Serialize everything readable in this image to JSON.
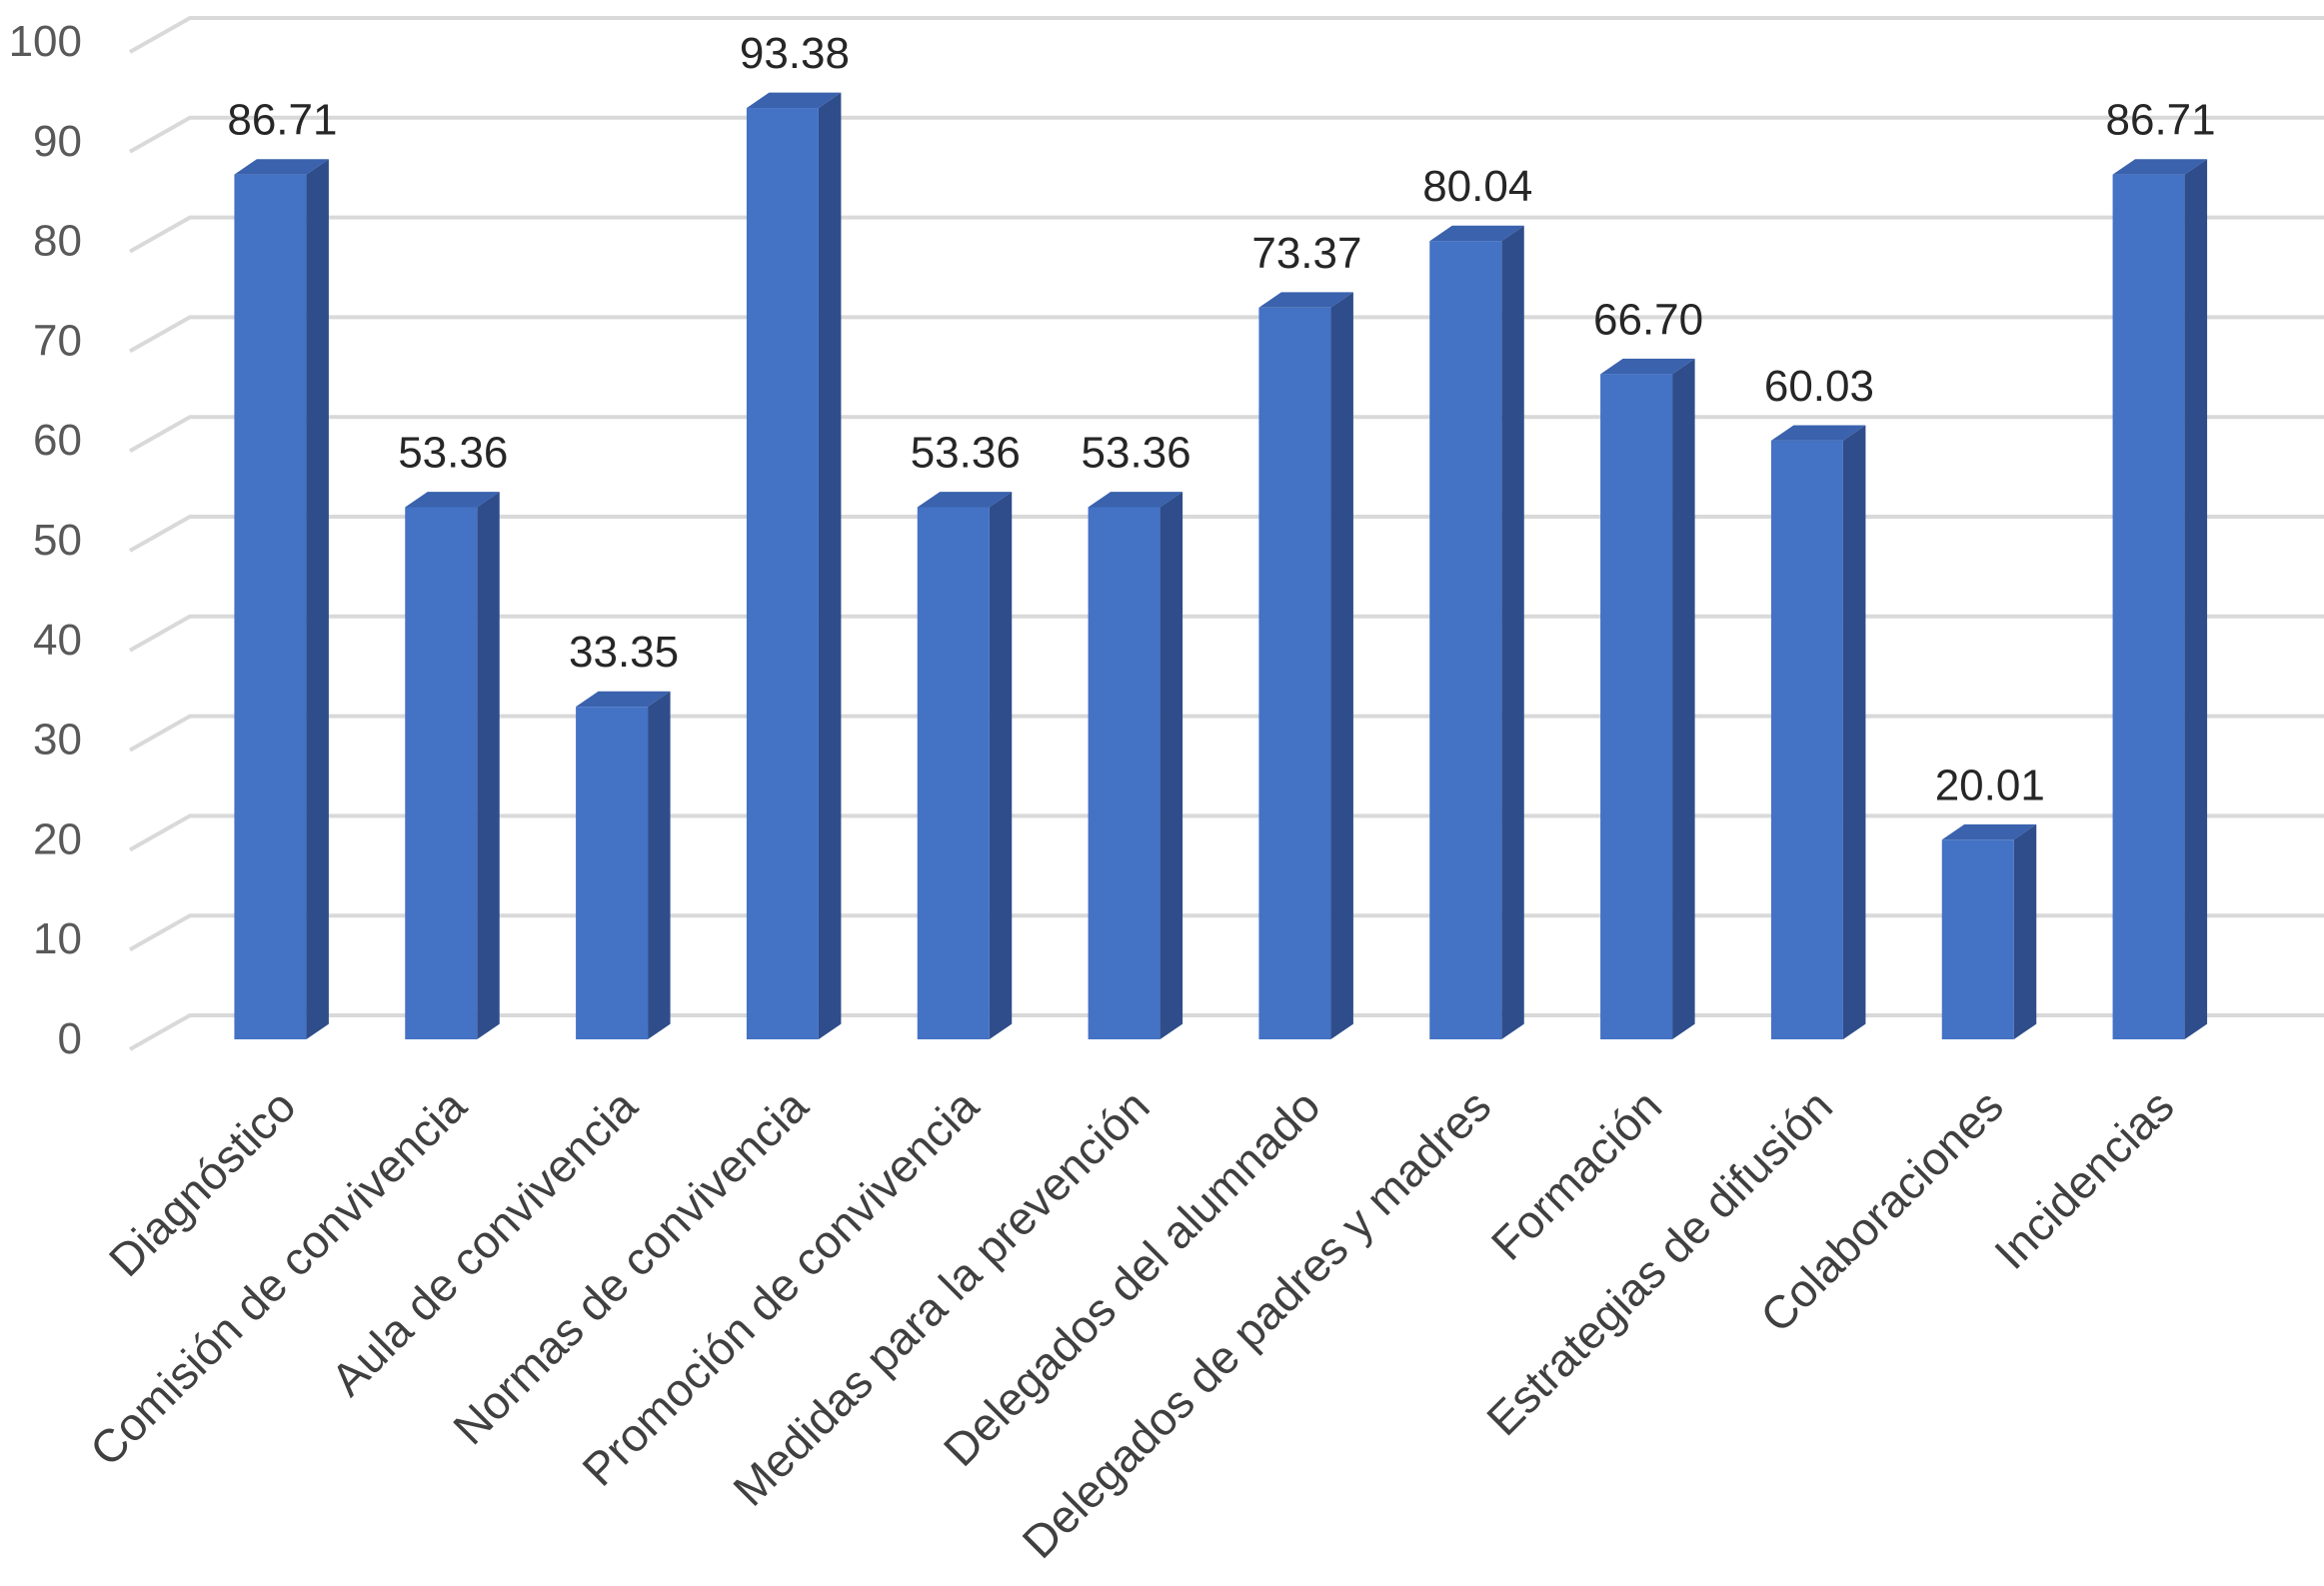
{
  "chart_data": {
    "type": "bar",
    "style": "3d-column",
    "categories": [
      "Diagnóstico",
      "Comisión de convivencia",
      "Aula de convivencia",
      "Normas  de convivencia",
      "Promoción de convivencia",
      "Medidas para la prevención",
      "Delegados del alumnado",
      "Delegados de padres y madres",
      "Formación",
      "Estrategias de difusión",
      "Colaboraciones",
      "Incidencias"
    ],
    "values": [
      86.71,
      53.36,
      33.35,
      93.38,
      53.36,
      53.36,
      73.37,
      80.04,
      66.7,
      60.03,
      20.01,
      86.71
    ],
    "data_labels": [
      "86.71",
      "53.36",
      "33.35",
      "93.38",
      "53.36",
      "53.36",
      "73.37",
      "80.04",
      "66.70",
      "60.03",
      "20.01",
      "86.71"
    ],
    "yticks": [
      "0",
      "10",
      "20",
      "30",
      "40",
      "50",
      "60",
      "70",
      "80",
      "90",
      "100"
    ],
    "ylim": [
      0,
      100
    ],
    "grid": true,
    "legend": "none",
    "colors": {
      "bar_front": "#4472c4",
      "bar_side": "#2e4d8a",
      "bar_top": "#3a62ad",
      "grid": "#d9d9d9"
    }
  }
}
